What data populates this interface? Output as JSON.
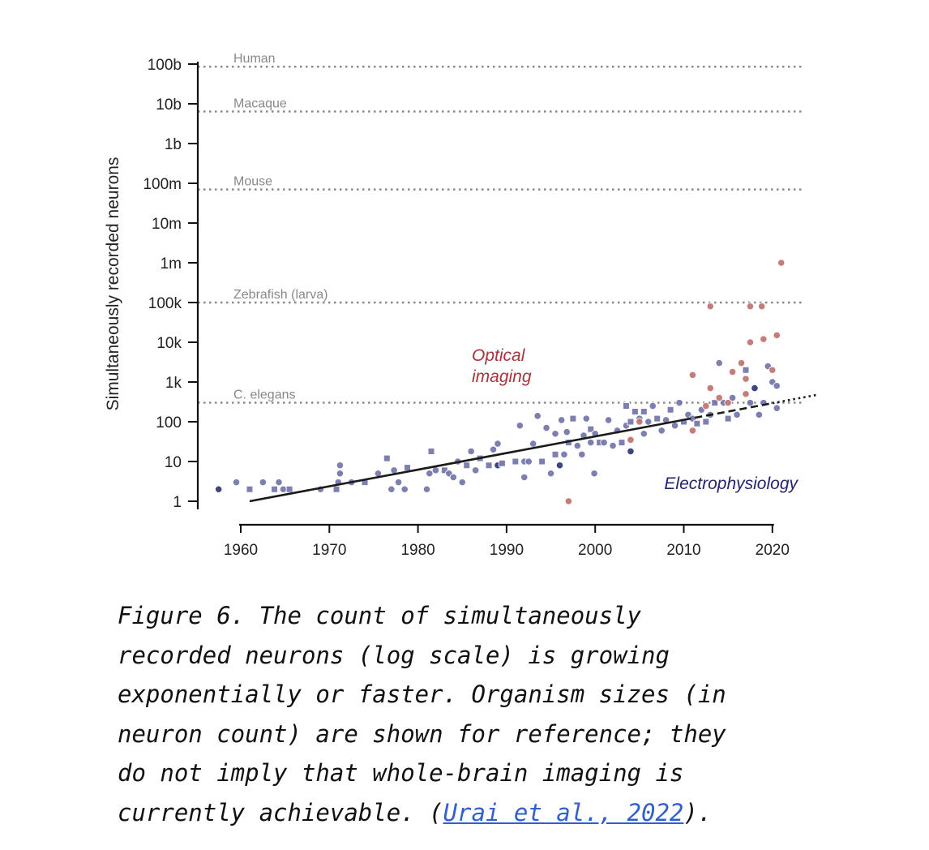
{
  "chart_data": {
    "type": "scatter",
    "ylabel": "Simultaneously recorded neurons",
    "xlabel": "",
    "x_scale": "linear",
    "y_scale": "log10",
    "xlim": [
      1956,
      2025
    ],
    "ylim": [
      0.5,
      150000000000
    ],
    "x_ticks": [
      1960,
      1970,
      1980,
      1990,
      2000,
      2010,
      2020
    ],
    "y_ticks": [
      {
        "value": 1,
        "label": "1"
      },
      {
        "value": 10,
        "label": "10"
      },
      {
        "value": 100,
        "label": "100"
      },
      {
        "value": 1000,
        "label": "1k"
      },
      {
        "value": 10000,
        "label": "10k"
      },
      {
        "value": 100000,
        "label": "100k"
      },
      {
        "value": 1000000,
        "label": "1m"
      },
      {
        "value": 10000000,
        "label": "10m"
      },
      {
        "value": 100000000,
        "label": "100m"
      },
      {
        "value": 1000000000,
        "label": "1b"
      },
      {
        "value": 10000000000,
        "label": "10b"
      },
      {
        "value": 100000000000,
        "label": "100b"
      }
    ],
    "reference_lines": [
      {
        "label": "Human",
        "value": 86000000000
      },
      {
        "label": "Macaque",
        "value": 6400000000
      },
      {
        "label": "Mouse",
        "value": 70000000
      },
      {
        "label": "Zebrafish (larva)",
        "value": 100000
      },
      {
        "label": "C. elegans",
        "value": 302
      }
    ],
    "annotations": [
      {
        "text": "Optical\nimaging",
        "color": "#a8343a"
      },
      {
        "text": "Electrophysiology",
        "color": "#23236b"
      }
    ],
    "trend": {
      "x0": 1961,
      "y0": 1,
      "doubling_years": 7.2,
      "solid_to": 2010,
      "dashed_to": 2020,
      "dotted_to": 2025
    },
    "colors": {
      "electro": "#6e72a8",
      "electro_dark": "#2c3175",
      "optical": "#c0706c",
      "trend": "#1a1a1a",
      "ref": "#8a8a8a"
    },
    "series": [
      {
        "name": "Electrophysiology",
        "points": [
          {
            "x": 1957.5,
            "y": 2,
            "m": "o",
            "d": 1
          },
          {
            "x": 1959.5,
            "y": 3,
            "m": "o"
          },
          {
            "x": 1961,
            "y": 2,
            "m": "s"
          },
          {
            "x": 1962.5,
            "y": 3,
            "m": "o"
          },
          {
            "x": 1963.8,
            "y": 2,
            "m": "s"
          },
          {
            "x": 1964.3,
            "y": 3,
            "m": "o"
          },
          {
            "x": 1964.8,
            "y": 2,
            "m": "o"
          },
          {
            "x": 1965.5,
            "y": 2,
            "m": "s"
          },
          {
            "x": 1969,
            "y": 2,
            "m": "o"
          },
          {
            "x": 1970.8,
            "y": 2,
            "m": "s"
          },
          {
            "x": 1971,
            "y": 3,
            "m": "o"
          },
          {
            "x": 1971.2,
            "y": 5,
            "m": "o"
          },
          {
            "x": 1971.2,
            "y": 8,
            "m": "o"
          },
          {
            "x": 1972.5,
            "y": 3,
            "m": "o"
          },
          {
            "x": 1974,
            "y": 3,
            "m": "s"
          },
          {
            "x": 1975.5,
            "y": 5,
            "m": "o"
          },
          {
            "x": 1976.5,
            "y": 12,
            "m": "s"
          },
          {
            "x": 1977,
            "y": 2,
            "m": "o"
          },
          {
            "x": 1977.3,
            "y": 6,
            "m": "o"
          },
          {
            "x": 1977.8,
            "y": 3,
            "m": "o"
          },
          {
            "x": 1978.5,
            "y": 2,
            "m": "o"
          },
          {
            "x": 1978.8,
            "y": 7,
            "m": "s"
          },
          {
            "x": 1981,
            "y": 2,
            "m": "o"
          },
          {
            "x": 1981.3,
            "y": 5,
            "m": "o"
          },
          {
            "x": 1981.5,
            "y": 18,
            "m": "s"
          },
          {
            "x": 1982,
            "y": 6,
            "m": "o"
          },
          {
            "x": 1983,
            "y": 6,
            "m": "s"
          },
          {
            "x": 1983.5,
            "y": 5,
            "m": "o"
          },
          {
            "x": 1984,
            "y": 4,
            "m": "o"
          },
          {
            "x": 1984.5,
            "y": 10,
            "m": "o"
          },
          {
            "x": 1985,
            "y": 3,
            "m": "o"
          },
          {
            "x": 1985.5,
            "y": 8,
            "m": "s"
          },
          {
            "x": 1986,
            "y": 18,
            "m": "o"
          },
          {
            "x": 1986.5,
            "y": 6,
            "m": "o"
          },
          {
            "x": 1987,
            "y": 12,
            "m": "s"
          },
          {
            "x": 1988,
            "y": 8,
            "m": "s"
          },
          {
            "x": 1988.5,
            "y": 20,
            "m": "o"
          },
          {
            "x": 1989,
            "y": 8,
            "m": "o",
            "d": 1
          },
          {
            "x": 1989,
            "y": 28,
            "m": "o"
          },
          {
            "x": 1989.5,
            "y": 9,
            "m": "s"
          },
          {
            "x": 1991,
            "y": 10,
            "m": "s"
          },
          {
            "x": 1991.5,
            "y": 80,
            "m": "o"
          },
          {
            "x": 1992,
            "y": 4,
            "m": "o"
          },
          {
            "x": 1992,
            "y": 10,
            "m": "o"
          },
          {
            "x": 1992.5,
            "y": 10,
            "m": "o"
          },
          {
            "x": 1993,
            "y": 28,
            "m": "o"
          },
          {
            "x": 1993.5,
            "y": 140,
            "m": "o"
          },
          {
            "x": 1994,
            "y": 10,
            "m": "s"
          },
          {
            "x": 1994.5,
            "y": 70,
            "m": "o"
          },
          {
            "x": 1995,
            "y": 5,
            "m": "o"
          },
          {
            "x": 1995.5,
            "y": 15,
            "m": "s"
          },
          {
            "x": 1995.5,
            "y": 50,
            "m": "o"
          },
          {
            "x": 1996,
            "y": 8,
            "m": "o",
            "d": 1
          },
          {
            "x": 1996.5,
            "y": 15,
            "m": "o"
          },
          {
            "x": 1996.2,
            "y": 110,
            "m": "o"
          },
          {
            "x": 1996.8,
            "y": 55,
            "m": "o"
          },
          {
            "x": 1997,
            "y": 30,
            "m": "s"
          },
          {
            "x": 1997.5,
            "y": 120,
            "m": "s"
          },
          {
            "x": 1998,
            "y": 25,
            "m": "o"
          },
          {
            "x": 1998.5,
            "y": 15,
            "m": "o"
          },
          {
            "x": 1998.7,
            "y": 45,
            "m": "o"
          },
          {
            "x": 1999,
            "y": 120,
            "m": "o"
          },
          {
            "x": 1999.5,
            "y": 30,
            "m": "o"
          },
          {
            "x": 1999.5,
            "y": 65,
            "m": "s"
          },
          {
            "x": 1999.9,
            "y": 5,
            "m": "o"
          },
          {
            "x": 2000,
            "y": 50,
            "m": "o"
          },
          {
            "x": 2000.5,
            "y": 30,
            "m": "s"
          },
          {
            "x": 2001,
            "y": 30,
            "m": "o"
          },
          {
            "x": 2001.5,
            "y": 110,
            "m": "o"
          },
          {
            "x": 2002,
            "y": 25,
            "m": "o"
          },
          {
            "x": 2002.5,
            "y": 60,
            "m": "o"
          },
          {
            "x": 2003,
            "y": 30,
            "m": "s"
          },
          {
            "x": 2003.5,
            "y": 250,
            "m": "s"
          },
          {
            "x": 2003.5,
            "y": 80,
            "m": "o"
          },
          {
            "x": 2004,
            "y": 18,
            "m": "o",
            "d": 1
          },
          {
            "x": 2004,
            "y": 100,
            "m": "s"
          },
          {
            "x": 2004.5,
            "y": 180,
            "m": "s"
          },
          {
            "x": 2005,
            "y": 120,
            "m": "o"
          },
          {
            "x": 2005.5,
            "y": 50,
            "m": "o"
          },
          {
            "x": 2005.5,
            "y": 180,
            "m": "s"
          },
          {
            "x": 2006,
            "y": 100,
            "m": "o"
          },
          {
            "x": 2006.5,
            "y": 250,
            "m": "o"
          },
          {
            "x": 2007,
            "y": 120,
            "m": "s"
          },
          {
            "x": 2007.5,
            "y": 60,
            "m": "o"
          },
          {
            "x": 2008,
            "y": 110,
            "m": "o"
          },
          {
            "x": 2008.5,
            "y": 200,
            "m": "s"
          },
          {
            "x": 2009,
            "y": 80,
            "m": "o"
          },
          {
            "x": 2009.5,
            "y": 300,
            "m": "o"
          },
          {
            "x": 2010,
            "y": 100,
            "m": "s"
          },
          {
            "x": 2010.5,
            "y": 150,
            "m": "o"
          },
          {
            "x": 2011,
            "y": 120,
            "m": "o"
          },
          {
            "x": 2011.5,
            "y": 90,
            "m": "s"
          },
          {
            "x": 2012,
            "y": 200,
            "m": "o"
          },
          {
            "x": 2012.5,
            "y": 100,
            "m": "s"
          },
          {
            "x": 2013,
            "y": 150,
            "m": "o"
          },
          {
            "x": 2013.5,
            "y": 300,
            "m": "s"
          },
          {
            "x": 2014,
            "y": 3000,
            "m": "o"
          },
          {
            "x": 2014.5,
            "y": 300,
            "m": "o"
          },
          {
            "x": 2015,
            "y": 120,
            "m": "s"
          },
          {
            "x": 2015.5,
            "y": 400,
            "m": "o"
          },
          {
            "x": 2016,
            "y": 150,
            "m": "o"
          },
          {
            "x": 2017,
            "y": 2000,
            "m": "s"
          },
          {
            "x": 2017.5,
            "y": 300,
            "m": "o"
          },
          {
            "x": 2018,
            "y": 700,
            "m": "o",
            "d": 1
          },
          {
            "x": 2018.5,
            "y": 150,
            "m": "o"
          },
          {
            "x": 2019,
            "y": 300,
            "m": "o"
          },
          {
            "x": 2019.5,
            "y": 2500,
            "m": "o"
          },
          {
            "x": 2020,
            "y": 1000,
            "m": "o"
          },
          {
            "x": 2020.5,
            "y": 220,
            "m": "o"
          },
          {
            "x": 2020.5,
            "y": 800,
            "m": "o"
          }
        ]
      },
      {
        "name": "Optical imaging",
        "points": [
          {
            "x": 1997,
            "y": 1
          },
          {
            "x": 2004,
            "y": 35
          },
          {
            "x": 2005,
            "y": 100
          },
          {
            "x": 2011,
            "y": 60
          },
          {
            "x": 2011,
            "y": 1500
          },
          {
            "x": 2012.5,
            "y": 250
          },
          {
            "x": 2013,
            "y": 700
          },
          {
            "x": 2013,
            "y": 80000
          },
          {
            "x": 2014,
            "y": 400
          },
          {
            "x": 2015,
            "y": 300
          },
          {
            "x": 2015.5,
            "y": 1800
          },
          {
            "x": 2016.5,
            "y": 3000
          },
          {
            "x": 2017,
            "y": 1200
          },
          {
            "x": 2017,
            "y": 500
          },
          {
            "x": 2017.5,
            "y": 10000
          },
          {
            "x": 2017.5,
            "y": 80000
          },
          {
            "x": 2018.8,
            "y": 80000
          },
          {
            "x": 2019,
            "y": 12000
          },
          {
            "x": 2020,
            "y": 2000
          },
          {
            "x": 2020.5,
            "y": 15000
          },
          {
            "x": 2021,
            "y": 1000000
          }
        ]
      }
    ]
  },
  "caption": {
    "text_before_link": "Figure 6. The count of simultaneously\nrecorded neurons (log scale) is growing\nexponentially or faster. Organism sizes (in\nneuron count) are shown for reference; they\ndo not imply that whole-brain imaging is\ncurrently achievable. (",
    "link_text": "Urai et al., 2022",
    "text_after_link": ")."
  }
}
